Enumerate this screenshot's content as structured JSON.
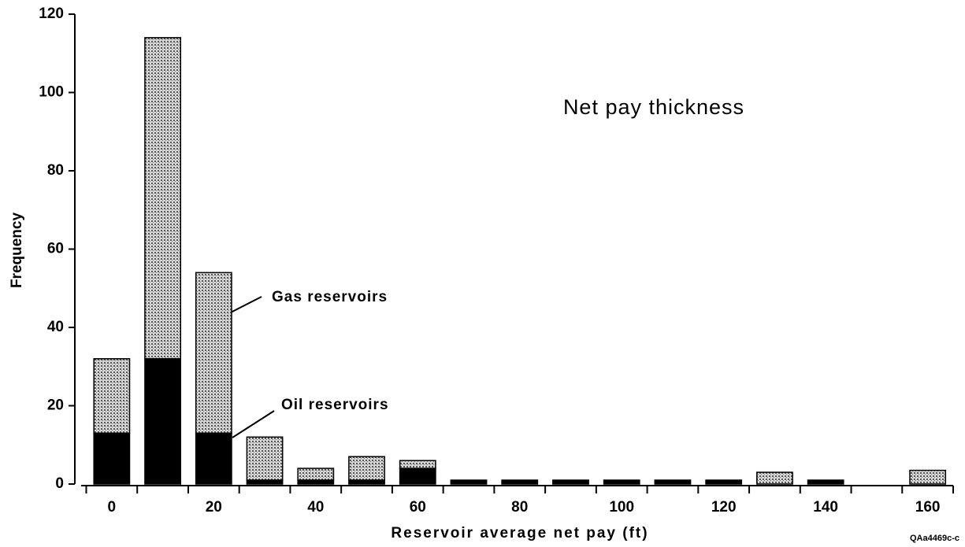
{
  "chart_data": {
    "type": "histogram",
    "title": "Net pay thickness",
    "x_label": "Reservoir average net pay (ft)",
    "y_label": "Frequency",
    "code": "QAa4469c-c",
    "bins": [
      -5,
      5,
      15,
      25,
      35,
      45,
      55,
      65,
      75,
      85,
      95,
      105,
      115,
      125,
      135,
      145,
      155,
      165
    ],
    "series": [
      {
        "name": "Oil reservoirs",
        "color": "#000000",
        "values": [
          13,
          32,
          13,
          1,
          1,
          1,
          4,
          1,
          1,
          1,
          1,
          1,
          1,
          0,
          1,
          0,
          0
        ]
      },
      {
        "name": "Gas reservoirs",
        "color": "#b5b5b5",
        "values": [
          19,
          82,
          41,
          11,
          3,
          6,
          2,
          0,
          0,
          0,
          0,
          0,
          0,
          3,
          0,
          0,
          3.5
        ]
      }
    ],
    "stacked": true,
    "xlim": [
      -6,
      165
    ],
    "xticks": [
      0,
      20,
      40,
      60,
      80,
      100,
      120,
      140,
      160
    ],
    "ylim": [
      0,
      120
    ],
    "yticks": [
      0,
      20,
      40,
      60,
      80,
      100,
      120
    ]
  }
}
